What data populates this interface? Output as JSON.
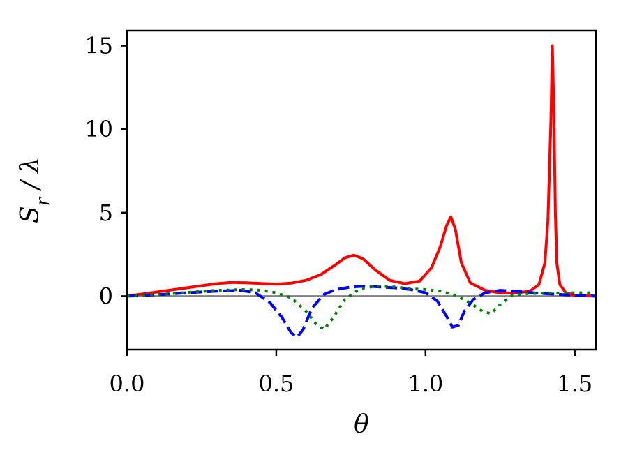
{
  "chart_data": {
    "type": "line",
    "title": "",
    "xlabel": "θ",
    "ylabel": "S_r / λ",
    "xlim": [
      0.0,
      1.5708
    ],
    "ylim": [
      -3.2,
      15.9
    ],
    "xticks": [
      0.0,
      0.5,
      1.0,
      1.5
    ],
    "xtick_labels": [
      "0.0",
      "0.5",
      "1.0",
      "1.5"
    ],
    "yticks": [
      0,
      5,
      10,
      15
    ],
    "ytick_labels": [
      "0",
      "5",
      "10",
      "15"
    ],
    "grid": false,
    "legend": "none",
    "series": [
      {
        "color": "#ff0000",
        "style": "solid",
        "x": [
          0.0,
          0.1,
          0.2,
          0.3,
          0.35,
          0.4,
          0.5,
          0.55,
          0.6,
          0.65,
          0.7,
          0.73,
          0.76,
          0.79,
          0.83,
          0.88,
          0.93,
          0.98,
          1.02,
          1.05,
          1.07,
          1.085,
          1.1,
          1.12,
          1.15,
          1.2,
          1.25,
          1.3,
          1.35,
          1.38,
          1.4,
          1.41,
          1.42,
          1.425,
          1.43,
          1.435,
          1.44,
          1.45,
          1.47,
          1.5,
          1.5708
        ],
        "y": [
          0.0,
          0.25,
          0.5,
          0.75,
          0.82,
          0.8,
          0.72,
          0.78,
          0.95,
          1.3,
          1.9,
          2.3,
          2.45,
          2.25,
          1.6,
          0.95,
          0.75,
          0.9,
          1.7,
          3.0,
          4.2,
          4.75,
          4.0,
          2.0,
          0.8,
          0.35,
          0.2,
          0.18,
          0.3,
          0.7,
          2.0,
          4.5,
          10.5,
          15.0,
          11.0,
          5.0,
          2.0,
          0.7,
          0.2,
          0.05,
          0.0
        ]
      },
      {
        "color": "#0000ff",
        "style": "dashed",
        "x": [
          0.0,
          0.1,
          0.2,
          0.3,
          0.38,
          0.43,
          0.48,
          0.52,
          0.55,
          0.57,
          0.59,
          0.62,
          0.66,
          0.7,
          0.75,
          0.8,
          0.85,
          0.9,
          0.95,
          1.0,
          1.04,
          1.07,
          1.09,
          1.11,
          1.13,
          1.16,
          1.2,
          1.25,
          1.3,
          1.35,
          1.4,
          1.5,
          1.5708
        ],
        "y": [
          0.0,
          0.08,
          0.2,
          0.3,
          0.35,
          0.2,
          -0.4,
          -1.3,
          -2.2,
          -2.45,
          -2.0,
          -0.7,
          0.1,
          0.4,
          0.55,
          0.6,
          0.55,
          0.5,
          0.4,
          0.2,
          -0.3,
          -1.2,
          -1.85,
          -1.75,
          -0.9,
          -0.2,
          0.2,
          0.35,
          0.3,
          0.22,
          0.15,
          0.05,
          0.0
        ]
      },
      {
        "color": "#008000",
        "style": "dotted",
        "x": [
          0.0,
          0.1,
          0.2,
          0.3,
          0.4,
          0.45,
          0.5,
          0.55,
          0.6,
          0.63,
          0.66,
          0.69,
          0.73,
          0.78,
          0.83,
          0.9,
          0.95,
          1.0,
          1.05,
          1.1,
          1.15,
          1.19,
          1.22,
          1.25,
          1.29,
          1.34,
          1.4,
          1.5,
          1.5708
        ],
        "y": [
          0.0,
          0.1,
          0.22,
          0.35,
          0.4,
          0.35,
          0.2,
          -0.1,
          -0.9,
          -1.6,
          -2.0,
          -1.3,
          -0.2,
          0.45,
          0.6,
          0.55,
          0.45,
          0.4,
          0.3,
          0.05,
          -0.4,
          -0.9,
          -1.05,
          -0.5,
          0.05,
          0.15,
          0.18,
          0.2,
          0.2
        ]
      },
      {
        "color": "#808080",
        "style": "solid",
        "x": [
          0.0,
          1.5708
        ],
        "y": [
          0.0,
          0.0
        ]
      }
    ]
  }
}
